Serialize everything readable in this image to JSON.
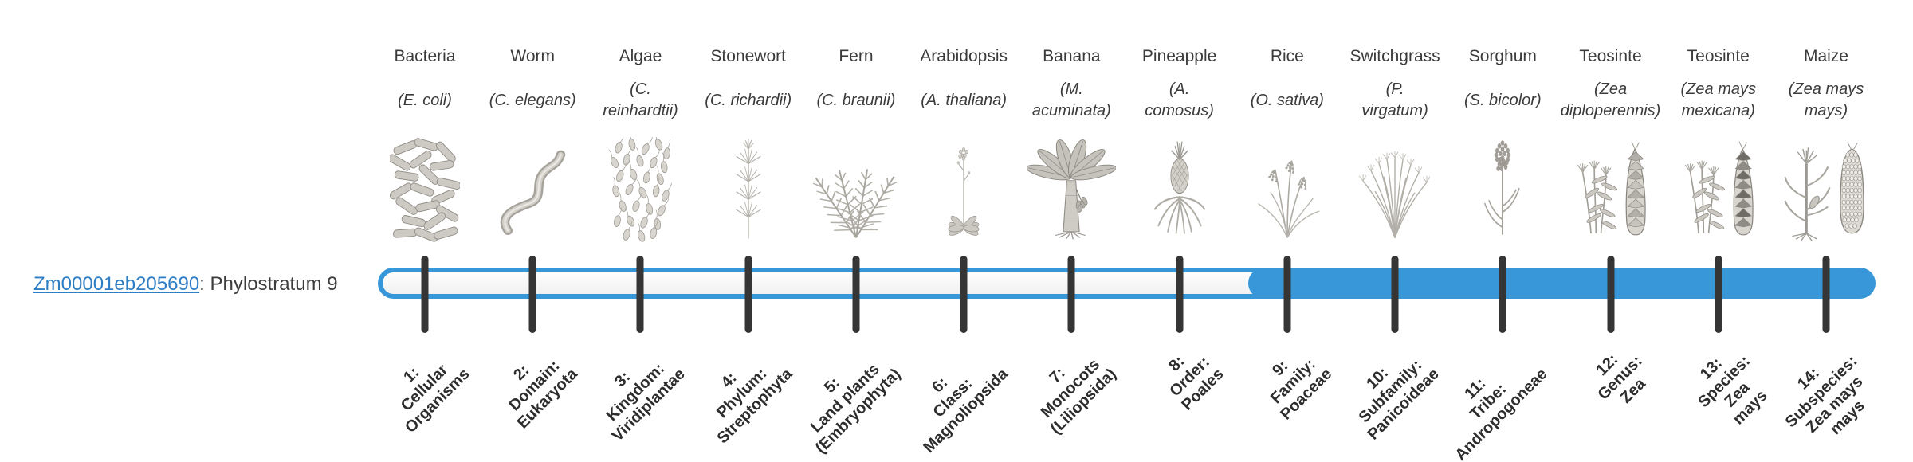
{
  "gene": {
    "id": "Zm00001eb205690",
    "phylostratum_text": ": Phylostratum 9",
    "phylostratum": 9
  },
  "timeline": {
    "total_strata": 14,
    "filled_from_stratum": 9,
    "track_border_color": "#3897d8",
    "track_fill_color": "#3897d8",
    "track_empty_color": "#f6f6f6",
    "tick_color": "#353535",
    "link_color": "#2e7ec6"
  },
  "organisms": [
    {
      "common": "Bacteria",
      "species": "(E. coli)",
      "icon": "bacteria",
      "stratum_label": "1:\nCellular\nOrganisms"
    },
    {
      "common": "Worm",
      "species": "(C. elegans)",
      "icon": "worm",
      "stratum_label": "2:\nDomain:\nEukaryota"
    },
    {
      "common": "Algae",
      "species": "(C.\nreinhardtii)",
      "icon": "algae",
      "stratum_label": "3:\nKingdom:\nViridiplantae"
    },
    {
      "common": "Stonewort",
      "species": "(C. richardii)",
      "icon": "stonewort",
      "stratum_label": "4:\nPhylum:\nStreptophyta"
    },
    {
      "common": "Fern",
      "species": "(C. braunii)",
      "icon": "fern",
      "stratum_label": "5:\nLand plants\n(Embryophyta)"
    },
    {
      "common": "Arabidopsis",
      "species": "(A. thaliana)",
      "icon": "arabidopsis",
      "stratum_label": "6:\nClass:\nMagnoliopsida"
    },
    {
      "common": "Banana",
      "species": "(M.\nacuminata)",
      "icon": "banana",
      "stratum_label": "7:\nMonocots\n(Liliopsida)"
    },
    {
      "common": "Pineapple",
      "species": "(A.\ncomosus)",
      "icon": "pineapple",
      "stratum_label": "8:\nOrder:\nPoales"
    },
    {
      "common": "Rice",
      "species": "(O. sativa)",
      "icon": "rice",
      "stratum_label": "9:\nFamily:\nPoaceae"
    },
    {
      "common": "Switchgrass",
      "species": "(P.\nvirgatum)",
      "icon": "switchgrass",
      "stratum_label": "10:\nSubfamily:\nPanicoideae"
    },
    {
      "common": "Sorghum",
      "species": "(S. bicolor)",
      "icon": "sorghum",
      "stratum_label": "11:\nTribe:\nAndropogoneae"
    },
    {
      "common": "Teosinte",
      "species": "(Zea\ndiploperennis)",
      "icon": "teosinte-diploperennis",
      "stratum_label": "12:\nGenus:\nZea"
    },
    {
      "common": "Teosinte",
      "species": "(Zea mays\nmexicana)",
      "icon": "teosinte-mexicana",
      "stratum_label": "13:\nSpecies:\nZea\nmays"
    },
    {
      "common": "Maize",
      "species": "(Zea mays\nmays)",
      "icon": "maize",
      "stratum_label": "14:\nSubspecies:\nZea mays\nmays"
    }
  ]
}
